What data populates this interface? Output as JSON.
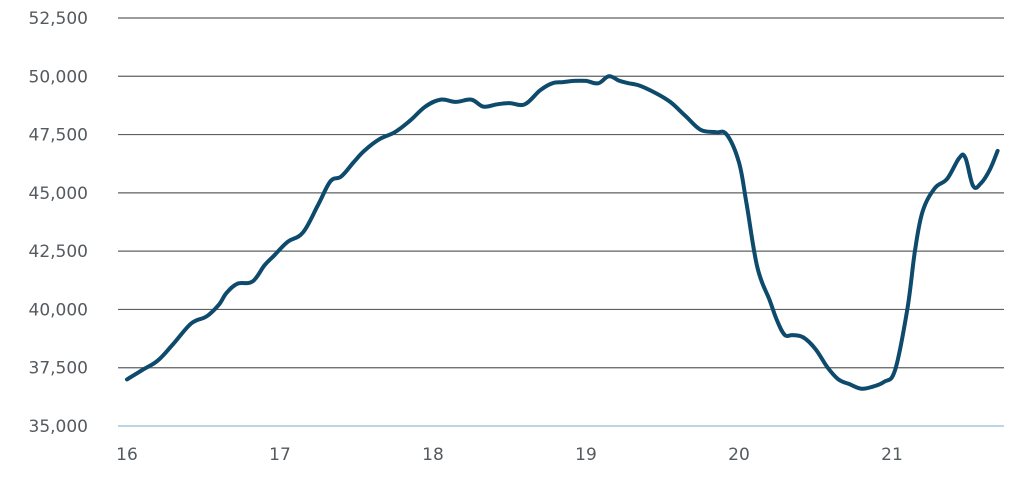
{
  "chart_data": {
    "type": "line",
    "title": "",
    "xlabel": "",
    "ylabel": "",
    "xlim": [
      16,
      21.7
    ],
    "ylim": [
      35000,
      52500
    ],
    "grid": true,
    "legend": "none",
    "x_ticks": [
      16,
      17,
      18,
      19,
      20,
      21
    ],
    "x_tick_labels": [
      "16",
      "17",
      "18",
      "19",
      "20",
      "21"
    ],
    "y_ticks": [
      35000,
      37500,
      40000,
      42500,
      45000,
      47500,
      50000,
      52500
    ],
    "y_tick_labels": [
      "35,000",
      "37,500",
      "40,000",
      "42,500",
      "45,000",
      "47,500",
      "50,000",
      "52,500"
    ],
    "colors": {
      "line": "#0d4a6b",
      "grid": "#5f6062",
      "baseline": "#a9c8dc",
      "text": "#555a5e"
    },
    "series": [
      {
        "x": [
          16.0,
          16.1,
          16.2,
          16.3,
          16.42,
          16.52,
          16.6,
          16.65,
          16.72,
          16.82,
          16.9,
          16.96,
          17.05,
          17.15,
          17.25,
          17.33,
          17.4,
          17.48,
          17.55,
          17.65,
          17.75,
          17.85,
          17.95,
          18.05,
          18.15,
          18.25,
          18.33,
          18.42,
          18.5,
          18.6,
          18.7,
          18.78,
          18.85,
          18.92,
          19.0,
          19.08,
          19.15,
          19.22,
          19.28,
          19.35,
          19.45,
          19.55,
          19.65,
          19.75,
          19.85,
          19.92,
          20.0,
          20.05,
          20.12,
          20.2,
          20.25,
          20.3,
          20.35,
          20.42,
          20.5,
          20.58,
          20.65,
          20.72,
          20.8,
          20.88,
          20.95,
          21.02,
          21.1,
          21.15,
          21.2,
          21.28,
          21.36,
          21.44,
          21.48,
          21.53,
          21.58,
          21.64,
          21.69
        ],
        "y": [
          37000,
          37400,
          37800,
          38500,
          39400,
          39700,
          40200,
          40700,
          41100,
          41200,
          41900,
          42300,
          42900,
          43300,
          44500,
          45500,
          45700,
          46300,
          46800,
          47300,
          47600,
          48100,
          48700,
          49000,
          48900,
          49000,
          48700,
          48800,
          48850,
          48800,
          49400,
          49700,
          49750,
          49800,
          49800,
          49700,
          50000,
          49800,
          49700,
          49600,
          49300,
          48900,
          48300,
          47700,
          47600,
          47500,
          46300,
          44500,
          41800,
          40400,
          39500,
          38900,
          38900,
          38800,
          38300,
          37500,
          37000,
          36800,
          36600,
          36700,
          36900,
          37400,
          40000,
          42500,
          44200,
          45200,
          45600,
          46500,
          46500,
          45300,
          45400,
          46000,
          46800
        ]
      }
    ]
  }
}
